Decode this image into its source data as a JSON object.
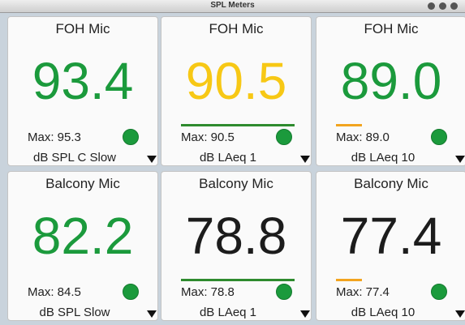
{
  "window": {
    "title": "SPL Meters"
  },
  "panels": [
    {
      "name": "FOH Mic",
      "value": "93.4",
      "value_color": "#1b9a3c",
      "max": "Max: 95.3",
      "mode": "dB SPL C Slow"
    },
    {
      "name": "FOH Mic",
      "value": "90.5",
      "value_color": "#f7c815",
      "indicator_color": "#2e8b2e",
      "max": "Max: 90.5",
      "mode": "dB LAeq 1"
    },
    {
      "name": "FOH Mic",
      "value": "89.0",
      "value_color": "#1b9a3c",
      "indicator_color": "#f2a41f",
      "max": "Max: 89.0",
      "mode": "dB LAeq 10"
    },
    {
      "name": "Balcony Mic",
      "value": "82.2",
      "value_color": "#1b9a3c",
      "max": "Max: 84.5",
      "mode": "dB SPL Slow"
    },
    {
      "name": "Balcony Mic",
      "value": "78.8",
      "value_color": "#1c1c1c",
      "indicator_color": "#2e8b2e",
      "max": "Max: 78.8",
      "mode": "dB LAeq 1"
    },
    {
      "name": "Balcony Mic",
      "value": "77.4",
      "value_color": "#1c1c1c",
      "indicator_color": "#f2a41f",
      "max": "Max: 77.4",
      "mode": "dB LAeq 10"
    }
  ]
}
